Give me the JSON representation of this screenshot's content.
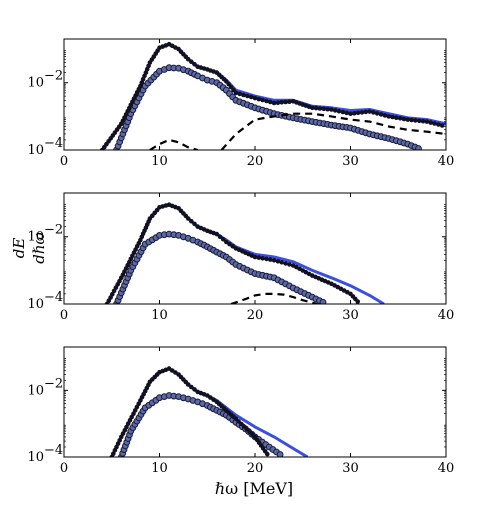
{
  "figure": {
    "xlabel": "ℏω [MeV]",
    "ylabel_numerator": "dE",
    "ylabel_denominator": "dℏω",
    "xtick_labels": [
      "0",
      "10",
      "20",
      "30",
      "40"
    ],
    "ytick_labels": [
      {
        "base": "10",
        "exp": "−2"
      },
      {
        "base": "10",
        "exp": "−4"
      }
    ]
  },
  "colors": {
    "blue_line": "#3a4fe0",
    "marker_fill": "#5b6aa0",
    "marker_edge": "#1a1a40",
    "dark_dots": "#111122",
    "dashed": "#000000"
  },
  "chart_data": [
    {
      "type": "line",
      "xlim": [
        0,
        40
      ],
      "ylim": [
        0.0001,
        0.2
      ],
      "yscale": "log",
      "grid": false,
      "series": [
        {
          "style": "solid-blue",
          "x": [
            4,
            6,
            8,
            9,
            10,
            11,
            12,
            13,
            14,
            15,
            16,
            17,
            18,
            20,
            22,
            24,
            26,
            28,
            30,
            32,
            34,
            36,
            38,
            40
          ],
          "y": [
            0.0001,
            0.0006,
            0.008,
            0.04,
            0.11,
            0.14,
            0.1,
            0.05,
            0.03,
            0.025,
            0.02,
            0.012,
            0.006,
            0.004,
            0.003,
            0.003,
            0.002,
            0.0018,
            0.0015,
            0.0016,
            0.0012,
            0.0009,
            0.0008,
            0.0006
          ]
        },
        {
          "style": "dark-dots",
          "x": [
            4,
            6,
            8,
            9,
            10,
            11,
            12,
            13,
            14,
            15,
            16,
            17,
            18,
            20,
            22,
            24,
            26,
            28,
            30,
            32,
            34,
            36,
            38,
            40
          ],
          "y": [
            0.0001,
            0.0006,
            0.008,
            0.04,
            0.11,
            0.14,
            0.1,
            0.05,
            0.03,
            0.025,
            0.02,
            0.011,
            0.005,
            0.0035,
            0.0025,
            0.0028,
            0.0018,
            0.0016,
            0.0012,
            0.0014,
            0.001,
            0.0008,
            0.0007,
            0.0005
          ]
        },
        {
          "style": "filled-circles",
          "x": [
            5.5,
            7,
            8.5,
            10,
            11,
            12,
            13,
            14,
            15,
            16,
            17,
            18,
            20,
            22,
            24,
            26,
            28,
            30,
            32,
            34,
            36,
            37.5
          ],
          "y": [
            0.0001,
            0.0012,
            0.008,
            0.022,
            0.028,
            0.027,
            0.022,
            0.016,
            0.012,
            0.01,
            0.006,
            0.003,
            0.0018,
            0.0012,
            0.0009,
            0.0007,
            0.00055,
            0.00045,
            0.0003,
            0.00022,
            0.00015,
            0.0001
          ]
        },
        {
          "style": "dashed",
          "x": [
            9,
            10,
            11,
            12,
            13,
            14
          ],
          "y": [
            0.0001,
            0.00015,
            0.0002,
            0.00017,
            0.00012,
            0.0001
          ]
        },
        {
          "style": "dashed",
          "x": [
            16.5,
            18,
            20,
            22,
            24,
            26,
            28,
            30,
            32,
            34,
            36,
            38,
            40
          ],
          "y": [
            0.0001,
            0.0003,
            0.0008,
            0.001,
            0.0012,
            0.0012,
            0.001,
            0.0008,
            0.0007,
            0.0005,
            0.0004,
            0.00035,
            0.0003
          ]
        }
      ]
    },
    {
      "type": "line",
      "xlim": [
        0,
        40
      ],
      "ylim": [
        0.0001,
        0.2
      ],
      "yscale": "log",
      "grid": false,
      "series": [
        {
          "style": "solid-blue",
          "x": [
            4.5,
            6,
            8,
            9,
            10,
            11,
            12,
            13,
            14,
            15,
            16,
            17,
            18,
            20,
            22,
            24,
            26,
            28,
            30,
            32,
            33.5
          ],
          "y": [
            0.0001,
            0.0006,
            0.008,
            0.035,
            0.075,
            0.09,
            0.07,
            0.035,
            0.02,
            0.015,
            0.012,
            0.008,
            0.005,
            0.003,
            0.0025,
            0.0018,
            0.001,
            0.0006,
            0.00035,
            0.00018,
            0.0001
          ]
        },
        {
          "style": "dark-dots",
          "x": [
            4.5,
            6,
            8,
            9,
            10,
            11,
            12,
            13,
            14,
            15,
            16,
            17,
            18,
            20,
            22,
            24,
            26,
            28,
            30,
            31
          ],
          "y": [
            0.0001,
            0.0006,
            0.008,
            0.035,
            0.075,
            0.09,
            0.07,
            0.035,
            0.02,
            0.015,
            0.012,
            0.007,
            0.0045,
            0.0025,
            0.002,
            0.0014,
            0.0007,
            0.0004,
            0.0002,
            0.0001
          ]
        },
        {
          "style": "filled-circles",
          "x": [
            5.5,
            7,
            8.5,
            10,
            11,
            12,
            13,
            14,
            15,
            16,
            17,
            18,
            20,
            22,
            24,
            26,
            27.5
          ],
          "y": [
            0.0001,
            0.001,
            0.006,
            0.011,
            0.012,
            0.011,
            0.009,
            0.007,
            0.005,
            0.0035,
            0.0025,
            0.0015,
            0.0008,
            0.0006,
            0.0003,
            0.00016,
            0.0001
          ]
        },
        {
          "style": "dashed",
          "x": [
            17.5,
            19,
            20,
            21,
            22,
            23,
            24,
            25,
            26.5
          ],
          "y": [
            0.0001,
            0.00014,
            0.00018,
            0.0002,
            0.0002,
            0.00019,
            0.00016,
            0.00013,
            0.0001
          ]
        }
      ]
    },
    {
      "type": "line",
      "xlim": [
        0,
        40
      ],
      "ylim": [
        0.0001,
        0.2
      ],
      "yscale": "log",
      "grid": false,
      "series": [
        {
          "style": "solid-blue",
          "x": [
            5,
            6,
            8,
            9,
            10,
            11,
            12,
            13,
            14,
            15,
            16,
            17,
            18,
            20,
            22,
            24,
            25.5
          ],
          "y": [
            0.0001,
            0.0004,
            0.005,
            0.018,
            0.035,
            0.045,
            0.03,
            0.015,
            0.009,
            0.007,
            0.005,
            0.003,
            0.0018,
            0.0008,
            0.0004,
            0.00018,
            0.0001
          ]
        },
        {
          "style": "dark-dots",
          "x": [
            5,
            6,
            8,
            9,
            10,
            11,
            12,
            13,
            14,
            15,
            16,
            17,
            18,
            20,
            21.5
          ],
          "y": [
            0.0001,
            0.0004,
            0.005,
            0.018,
            0.035,
            0.045,
            0.03,
            0.015,
            0.009,
            0.007,
            0.0045,
            0.0025,
            0.0014,
            0.0004,
            0.0001
          ]
        },
        {
          "style": "filled-circles",
          "x": [
            6,
            7,
            8.5,
            10,
            11,
            12,
            13,
            14,
            15,
            16,
            17,
            18,
            19,
            20,
            21.5,
            23
          ],
          "y": [
            0.0001,
            0.0006,
            0.003,
            0.006,
            0.007,
            0.0065,
            0.0055,
            0.0045,
            0.0035,
            0.0025,
            0.0018,
            0.0011,
            0.0007,
            0.0004,
            0.0002,
            0.0001
          ]
        }
      ]
    }
  ]
}
